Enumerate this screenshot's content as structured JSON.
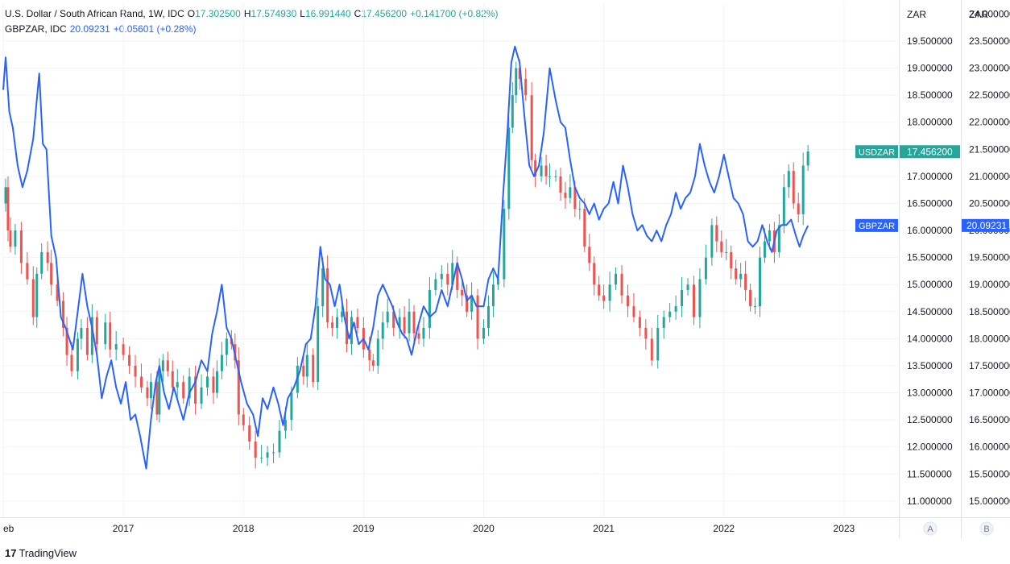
{
  "legend": {
    "row1": {
      "symbol": "U.S. Dollar / South African Rand, 1W, IDC",
      "o_label": "O",
      "o": "17.302500",
      "h_label": "H",
      "h": "17.574930",
      "l_label": "L",
      "l": "16.991440",
      "c_label": "C",
      "c": "17.456200",
      "change": "+0.141700 (+0.82%)"
    },
    "row2": {
      "symbol": "GBPZAR, IDC",
      "last": "20.09231",
      "change": "+0.05601 (+0.28%)"
    }
  },
  "branding": {
    "logo": "TradingView"
  },
  "colors": {
    "up": "#26a69a",
    "down": "#ef5350",
    "gbp_line": "#2962ff",
    "usdzar_label_bg": "#26a69a",
    "gbpzar_label_bg": "#2962ff",
    "grid": "#f0f3fa",
    "axis_text": "#131722"
  },
  "chart_data": {
    "type": "line",
    "candle_series": "USDZAR",
    "line_series": "GBPZAR",
    "x_tick_labels": [
      "eb",
      "2017",
      "2018",
      "2019",
      "2020",
      "2021",
      "2022",
      "2023"
    ],
    "x_ticks": [
      2016.0,
      2017.0,
      2018.0,
      2019.0,
      2020.0,
      2021.0,
      2022.0,
      2023.0
    ],
    "xlim": [
      2016.0,
      2023.45
    ],
    "axis_a": {
      "unit": "ZAR",
      "ticks": [
        "11.000000",
        "11.500000",
        "12.000000",
        "12.500000",
        "13.000000",
        "13.500000",
        "14.000000",
        "14.500000",
        "15.000000",
        "15.500000",
        "16.000000",
        "16.500000",
        "17.000000",
        "17.500000",
        "18.000000",
        "18.500000",
        "19.000000",
        "19.500000"
      ],
      "ylim": [
        10.7,
        20.2
      ],
      "scale_label": "A",
      "last_label": "USDZAR",
      "last_value": "17.456200"
    },
    "axis_b": {
      "unit": "ZAR",
      "ticks": [
        "15.000000",
        "15.500000",
        "16.000000",
        "16.500000",
        "17.000000",
        "17.500000",
        "18.000000",
        "18.500000",
        "19.000000",
        "19.500000",
        "20.000000",
        "20.500000",
        "21.000000",
        "21.500000",
        "22.000000",
        "22.500000",
        "23.000000",
        "23.500000",
        "24.000000"
      ],
      "ylim": [
        14.7,
        24.2
      ],
      "scale_label": "B",
      "last_label": "GBPZAR",
      "last_value": "20.09231"
    },
    "usdzar_closes": [
      [
        2016.0,
        16.5
      ],
      [
        2016.02,
        16.8
      ],
      [
        2016.04,
        16.0
      ],
      [
        2016.06,
        15.7
      ],
      [
        2016.1,
        16.0
      ],
      [
        2016.15,
        15.4
      ],
      [
        2016.2,
        15.1
      ],
      [
        2016.25,
        14.4
      ],
      [
        2016.28,
        15.2
      ],
      [
        2016.32,
        15.6
      ],
      [
        2016.37,
        15.4
      ],
      [
        2016.4,
        15.0
      ],
      [
        2016.45,
        14.7
      ],
      [
        2016.5,
        14.2
      ],
      [
        2016.53,
        13.7
      ],
      [
        2016.57,
        13.4
      ],
      [
        2016.62,
        14.0
      ],
      [
        2016.65,
        14.2
      ],
      [
        2016.7,
        13.7
      ],
      [
        2016.74,
        14.4
      ],
      [
        2016.78,
        13.9
      ],
      [
        2016.85,
        14.3
      ],
      [
        2016.89,
        13.8
      ],
      [
        2016.94,
        13.9
      ],
      [
        2017.0,
        13.7
      ],
      [
        2017.05,
        13.5
      ],
      [
        2017.1,
        13.3
      ],
      [
        2017.15,
        13.1
      ],
      [
        2017.2,
        12.9
      ],
      [
        2017.23,
        13.2
      ],
      [
        2017.28,
        12.6
      ],
      [
        2017.3,
        13.4
      ],
      [
        2017.33,
        13.6
      ],
      [
        2017.37,
        13.4
      ],
      [
        2017.41,
        13.1
      ],
      [
        2017.45,
        13.2
      ],
      [
        2017.5,
        12.9
      ],
      [
        2017.55,
        13.3
      ],
      [
        2017.6,
        12.8
      ],
      [
        2017.65,
        13.1
      ],
      [
        2017.7,
        13.3
      ],
      [
        2017.75,
        13.0
      ],
      [
        2017.78,
        13.4
      ],
      [
        2017.82,
        13.7
      ],
      [
        2017.86,
        14.0
      ],
      [
        2017.9,
        13.9
      ],
      [
        2017.93,
        13.6
      ],
      [
        2017.96,
        12.6
      ],
      [
        2018.0,
        12.4
      ],
      [
        2018.05,
        12.1
      ],
      [
        2018.1,
        11.8
      ],
      [
        2018.15,
        11.8
      ],
      [
        2018.2,
        11.9
      ],
      [
        2018.25,
        11.9
      ],
      [
        2018.3,
        12.3
      ],
      [
        2018.35,
        12.5
      ],
      [
        2018.4,
        13.0
      ],
      [
        2018.45,
        13.5
      ],
      [
        2018.5,
        13.3
      ],
      [
        2018.53,
        13.7
      ],
      [
        2018.58,
        13.2
      ],
      [
        2018.62,
        14.6
      ],
      [
        2018.66,
        15.3
      ],
      [
        2018.7,
        14.3
      ],
      [
        2018.74,
        14.2
      ],
      [
        2018.78,
        14.4
      ],
      [
        2018.82,
        14.5
      ],
      [
        2018.86,
        13.9
      ],
      [
        2018.9,
        14.4
      ],
      [
        2018.95,
        14.2
      ],
      [
        2019.0,
        13.8
      ],
      [
        2019.05,
        13.6
      ],
      [
        2019.08,
        13.5
      ],
      [
        2019.12,
        14.0
      ],
      [
        2019.16,
        14.3
      ],
      [
        2019.2,
        14.5
      ],
      [
        2019.25,
        14.2
      ],
      [
        2019.3,
        14.4
      ],
      [
        2019.34,
        14.1
      ],
      [
        2019.38,
        14.5
      ],
      [
        2019.42,
        14.1
      ],
      [
        2019.46,
        14.0
      ],
      [
        2019.5,
        14.2
      ],
      [
        2019.55,
        14.9
      ],
      [
        2019.6,
        15.1
      ],
      [
        2019.65,
        15.2
      ],
      [
        2019.7,
        15.0
      ],
      [
        2019.74,
        15.4
      ],
      [
        2019.78,
        14.9
      ],
      [
        2019.82,
        14.8
      ],
      [
        2019.86,
        14.5
      ],
      [
        2019.9,
        14.8
      ],
      [
        2019.95,
        14.0
      ],
      [
        2020.0,
        14.2
      ],
      [
        2020.04,
        14.6
      ],
      [
        2020.08,
        15.0
      ],
      [
        2020.12,
        15.1
      ],
      [
        2020.17,
        16.4
      ],
      [
        2020.21,
        17.9
      ],
      [
        2020.24,
        18.5
      ],
      [
        2020.27,
        19.0
      ],
      [
        2020.3,
        18.8
      ],
      [
        2020.35,
        18.5
      ],
      [
        2020.4,
        17.3
      ],
      [
        2020.43,
        17.0
      ],
      [
        2020.48,
        17.2
      ],
      [
        2020.52,
        17.0
      ],
      [
        2020.55,
        17.0
      ],
      [
        2020.6,
        17.0
      ],
      [
        2020.64,
        16.7
      ],
      [
        2020.68,
        16.6
      ],
      [
        2020.72,
        16.8
      ],
      [
        2020.76,
        16.4
      ],
      [
        2020.8,
        16.4
      ],
      [
        2020.84,
        15.7
      ],
      [
        2020.88,
        15.4
      ],
      [
        2020.92,
        15.0
      ],
      [
        2020.96,
        14.8
      ],
      [
        2021.0,
        14.7
      ],
      [
        2021.05,
        15.0
      ],
      [
        2021.1,
        15.2
      ],
      [
        2021.15,
        14.8
      ],
      [
        2021.2,
        14.6
      ],
      [
        2021.25,
        14.4
      ],
      [
        2021.3,
        14.2
      ],
      [
        2021.35,
        14.0
      ],
      [
        2021.4,
        13.6
      ],
      [
        2021.45,
        14.2
      ],
      [
        2021.5,
        14.4
      ],
      [
        2021.55,
        14.5
      ],
      [
        2021.6,
        14.6
      ],
      [
        2021.65,
        14.9
      ],
      [
        2021.7,
        15.0
      ],
      [
        2021.75,
        14.4
      ],
      [
        2021.8,
        15.1
      ],
      [
        2021.85,
        15.5
      ],
      [
        2021.9,
        16.1
      ],
      [
        2021.94,
        15.8
      ],
      [
        2021.98,
        15.6
      ],
      [
        2022.02,
        15.6
      ],
      [
        2022.06,
        15.3
      ],
      [
        2022.1,
        15.1
      ],
      [
        2022.14,
        15.2
      ],
      [
        2022.18,
        14.9
      ],
      [
        2022.22,
        14.6
      ],
      [
        2022.26,
        14.6
      ],
      [
        2022.3,
        15.5
      ],
      [
        2022.34,
        15.8
      ],
      [
        2022.38,
        16.0
      ],
      [
        2022.42,
        15.6
      ],
      [
        2022.46,
        16.1
      ],
      [
        2022.5,
        16.8
      ],
      [
        2022.54,
        17.1
      ],
      [
        2022.58,
        16.5
      ],
      [
        2022.62,
        16.3
      ],
      [
        2022.66,
        17.2
      ],
      [
        2022.7,
        17.46
      ]
    ],
    "gbpzar": [
      [
        2016.0,
        22.6
      ],
      [
        2016.02,
        23.2
      ],
      [
        2016.05,
        22.2
      ],
      [
        2016.08,
        21.9
      ],
      [
        2016.12,
        21.2
      ],
      [
        2016.16,
        20.8
      ],
      [
        2016.2,
        21.1
      ],
      [
        2016.25,
        21.7
      ],
      [
        2016.3,
        22.9
      ],
      [
        2016.33,
        21.6
      ],
      [
        2016.36,
        21.5
      ],
      [
        2016.4,
        19.9
      ],
      [
        2016.44,
        19.5
      ],
      [
        2016.48,
        18.4
      ],
      [
        2016.52,
        18.2
      ],
      [
        2016.55,
        18.0
      ],
      [
        2016.58,
        17.8
      ],
      [
        2016.62,
        18.5
      ],
      [
        2016.66,
        19.2
      ],
      [
        2016.7,
        18.6
      ],
      [
        2016.74,
        18.2
      ],
      [
        2016.78,
        17.7
      ],
      [
        2016.82,
        16.9
      ],
      [
        2016.86,
        17.3
      ],
      [
        2016.9,
        17.6
      ],
      [
        2016.94,
        17.1
      ],
      [
        2016.98,
        16.8
      ],
      [
        2017.02,
        17.2
      ],
      [
        2017.06,
        16.5
      ],
      [
        2017.1,
        16.6
      ],
      [
        2017.14,
        16.2
      ],
      [
        2017.19,
        15.6
      ],
      [
        2017.23,
        16.5
      ],
      [
        2017.27,
        17.2
      ],
      [
        2017.3,
        17.5
      ],
      [
        2017.34,
        17.0
      ],
      [
        2017.38,
        16.7
      ],
      [
        2017.42,
        17.1
      ],
      [
        2017.46,
        16.8
      ],
      [
        2017.5,
        16.5
      ],
      [
        2017.55,
        17.0
      ],
      [
        2017.6,
        17.2
      ],
      [
        2017.65,
        17.6
      ],
      [
        2017.7,
        17.4
      ],
      [
        2017.74,
        18.1
      ],
      [
        2017.78,
        18.5
      ],
      [
        2017.82,
        19.0
      ],
      [
        2017.86,
        18.2
      ],
      [
        2017.9,
        18.0
      ],
      [
        2017.94,
        17.6
      ],
      [
        2017.98,
        17.2
      ],
      [
        2018.03,
        16.8
      ],
      [
        2018.08,
        16.6
      ],
      [
        2018.12,
        16.2
      ],
      [
        2018.16,
        16.9
      ],
      [
        2018.2,
        16.7
      ],
      [
        2018.25,
        17.1
      ],
      [
        2018.29,
        16.8
      ],
      [
        2018.33,
        16.4
      ],
      [
        2018.37,
        16.9
      ],
      [
        2018.42,
        17.1
      ],
      [
        2018.47,
        17.4
      ],
      [
        2018.52,
        17.9
      ],
      [
        2018.56,
        18.0
      ],
      [
        2018.6,
        18.6
      ],
      [
        2018.64,
        19.7
      ],
      [
        2018.68,
        19.1
      ],
      [
        2018.72,
        19.0
      ],
      [
        2018.76,
        18.6
      ],
      [
        2018.8,
        19.0
      ],
      [
        2018.84,
        18.4
      ],
      [
        2018.88,
        18.0
      ],
      [
        2018.92,
        18.3
      ],
      [
        2018.96,
        17.9
      ],
      [
        2019.0,
        18.0
      ],
      [
        2019.04,
        17.8
      ],
      [
        2019.08,
        18.2
      ],
      [
        2019.12,
        18.8
      ],
      [
        2019.16,
        19.0
      ],
      [
        2019.2,
        18.8
      ],
      [
        2019.24,
        18.6
      ],
      [
        2019.28,
        18.3
      ],
      [
        2019.32,
        18.1
      ],
      [
        2019.36,
        18.0
      ],
      [
        2019.4,
        17.7
      ],
      [
        2019.45,
        18.2
      ],
      [
        2019.5,
        18.6
      ],
      [
        2019.55,
        18.4
      ],
      [
        2019.6,
        18.5
      ],
      [
        2019.65,
        18.9
      ],
      [
        2019.7,
        18.6
      ],
      [
        2019.74,
        19.0
      ],
      [
        2019.78,
        19.4
      ],
      [
        2019.82,
        19.1
      ],
      [
        2019.86,
        18.7
      ],
      [
        2019.9,
        18.8
      ],
      [
        2019.94,
        18.6
      ],
      [
        2020.0,
        18.6
      ],
      [
        2020.04,
        19.1
      ],
      [
        2020.08,
        19.3
      ],
      [
        2020.12,
        19.1
      ],
      [
        2020.16,
        20.6
      ],
      [
        2020.2,
        21.9
      ],
      [
        2020.23,
        23.1
      ],
      [
        2020.26,
        23.4
      ],
      [
        2020.3,
        23.1
      ],
      [
        2020.34,
        22.1
      ],
      [
        2020.38,
        21.2
      ],
      [
        2020.42,
        21.0
      ],
      [
        2020.46,
        21.2
      ],
      [
        2020.5,
        21.8
      ],
      [
        2020.55,
        23.0
      ],
      [
        2020.6,
        22.4
      ],
      [
        2020.64,
        22.0
      ],
      [
        2020.68,
        21.9
      ],
      [
        2020.72,
        21.3
      ],
      [
        2020.76,
        20.8
      ],
      [
        2020.8,
        20.6
      ],
      [
        2020.84,
        20.5
      ],
      [
        2020.88,
        20.3
      ],
      [
        2020.92,
        20.5
      ],
      [
        2020.96,
        20.2
      ],
      [
        2021.0,
        20.4
      ],
      [
        2021.04,
        20.5
      ],
      [
        2021.08,
        20.9
      ],
      [
        2021.12,
        20.5
      ],
      [
        2021.16,
        21.2
      ],
      [
        2021.2,
        20.8
      ],
      [
        2021.24,
        20.3
      ],
      [
        2021.28,
        20.0
      ],
      [
        2021.32,
        20.1
      ],
      [
        2021.36,
        19.9
      ],
      [
        2021.4,
        19.8
      ],
      [
        2021.44,
        20.0
      ],
      [
        2021.48,
        19.8
      ],
      [
        2021.52,
        20.1
      ],
      [
        2021.56,
        20.3
      ],
      [
        2021.6,
        20.7
      ],
      [
        2021.64,
        20.4
      ],
      [
        2021.68,
        20.6
      ],
      [
        2021.72,
        20.7
      ],
      [
        2021.76,
        21.0
      ],
      [
        2021.8,
        21.6
      ],
      [
        2021.84,
        21.2
      ],
      [
        2021.88,
        20.9
      ],
      [
        2021.92,
        20.7
      ],
      [
        2021.96,
        21.0
      ],
      [
        2022.0,
        21.4
      ],
      [
        2022.04,
        21.0
      ],
      [
        2022.08,
        20.6
      ],
      [
        2022.12,
        20.5
      ],
      [
        2022.16,
        20.3
      ],
      [
        2022.2,
        19.8
      ],
      [
        2022.24,
        19.7
      ],
      [
        2022.28,
        19.8
      ],
      [
        2022.32,
        20.1
      ],
      [
        2022.36,
        19.8
      ],
      [
        2022.4,
        19.6
      ],
      [
        2022.44,
        20.0
      ],
      [
        2022.48,
        20.1
      ],
      [
        2022.52,
        20.1
      ],
      [
        2022.56,
        20.2
      ],
      [
        2022.6,
        19.9
      ],
      [
        2022.63,
        19.7
      ],
      [
        2022.66,
        19.9
      ],
      [
        2022.7,
        20.09
      ]
    ]
  }
}
